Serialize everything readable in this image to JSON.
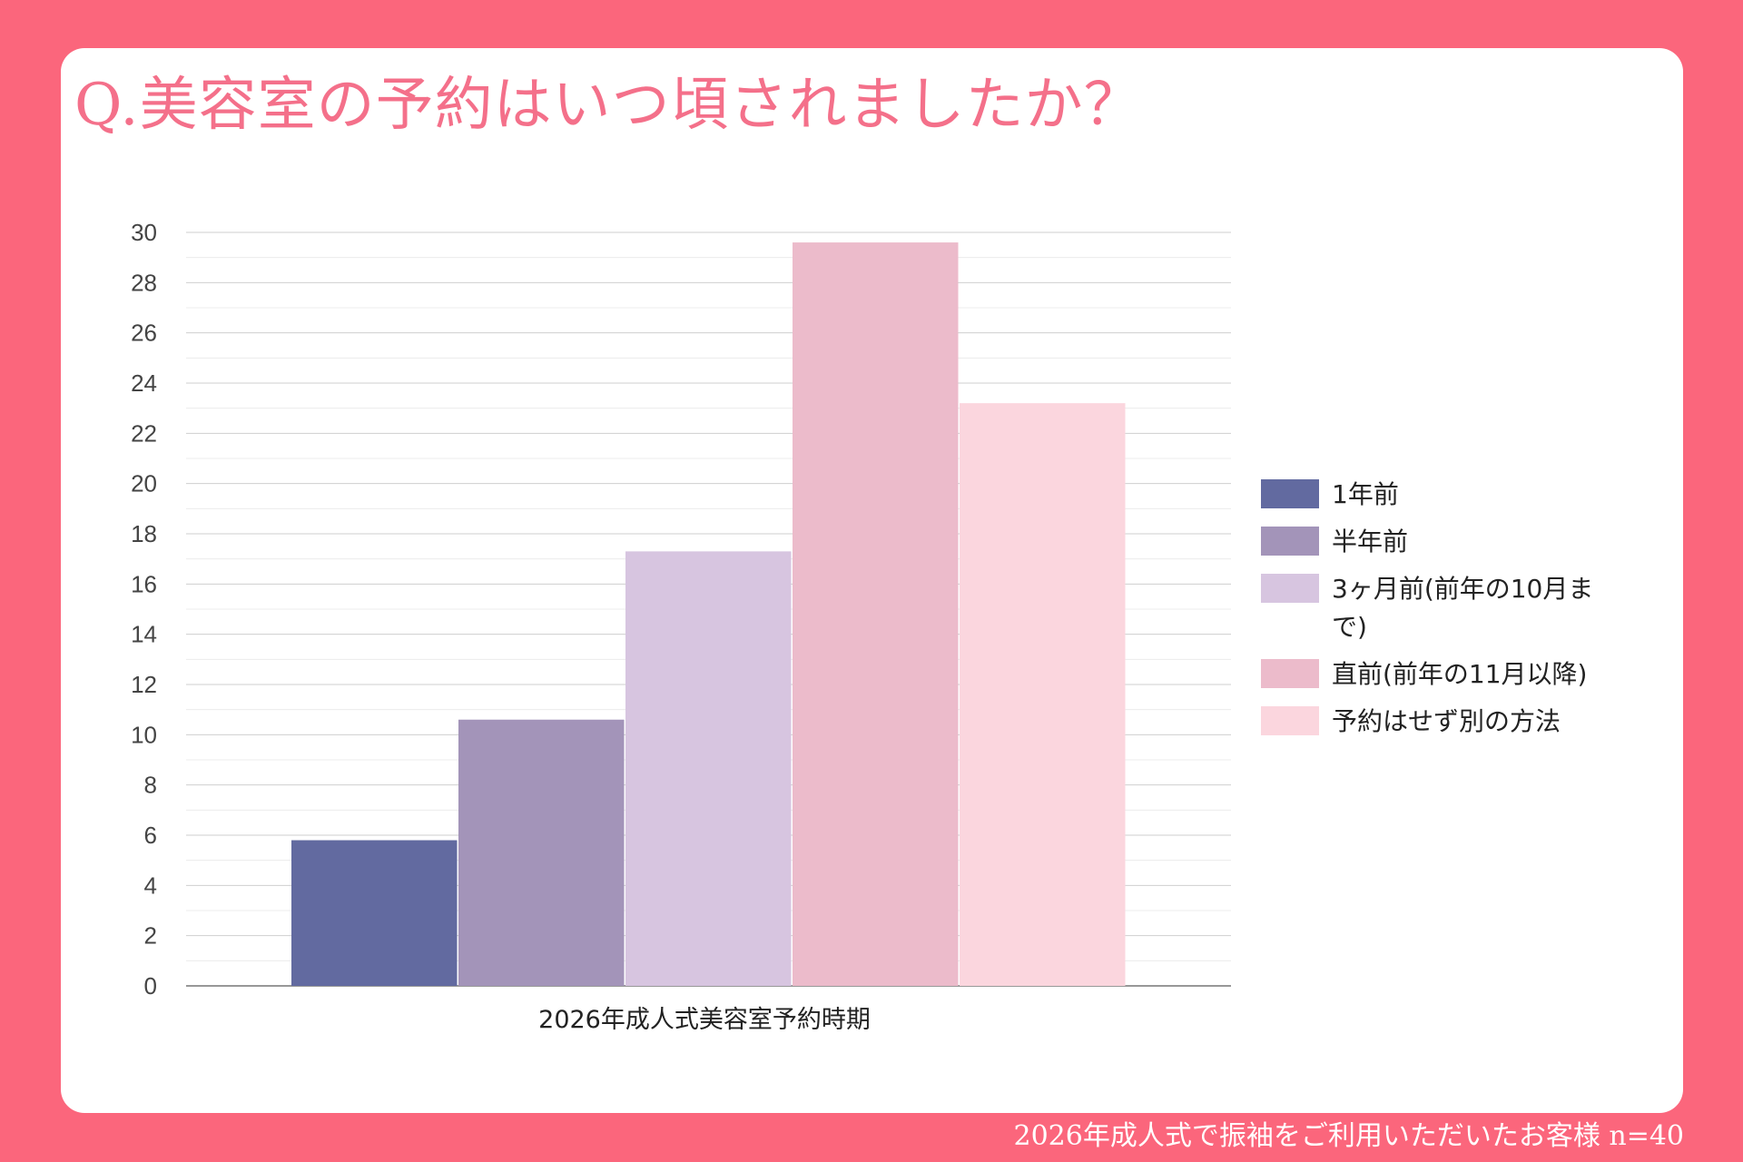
{
  "title": "Q.美容室の予約はいつ頃されましたか？",
  "footer": "2026年成人式で振袖をご利用いただいたお客様  n=40",
  "colors": {
    "frame": "#fb667c",
    "card": "#ffffff",
    "title": "#f4708a",
    "grid_major": "#cfcfcf",
    "grid_minor": "#ececec",
    "axis": "#777777"
  },
  "chart_data": {
    "type": "bar",
    "title": "Q.美容室の予約はいつ頃されましたか？",
    "xlabel": "",
    "ylabel": "",
    "ylim": [
      0,
      30
    ],
    "y_major_step": 2,
    "y_minor_step": 1,
    "grid": true,
    "legend_position": "right",
    "categories": [
      "2026年成人式美容室予約時期"
    ],
    "y_ticks": [
      "0",
      "2",
      "4",
      "6",
      "8",
      "10",
      "12",
      "14",
      "16",
      "18",
      "20",
      "22",
      "24",
      "26",
      "28",
      "30"
    ],
    "series": [
      {
        "name": "1年前",
        "values": [
          5.8
        ],
        "color": "#626aa0"
      },
      {
        "name": "半年前",
        "values": [
          10.6
        ],
        "color": "#a394b9"
      },
      {
        "name": "3ヶ月前(前年の10月まで)",
        "values": [
          17.3
        ],
        "color": "#d7c5e0"
      },
      {
        "name": "直前(前年の11月以降)",
        "values": [
          29.6
        ],
        "color": "#ecbbcb"
      },
      {
        "name": "予約はせず別の方法",
        "values": [
          23.2
        ],
        "color": "#fbd6de"
      }
    ]
  }
}
